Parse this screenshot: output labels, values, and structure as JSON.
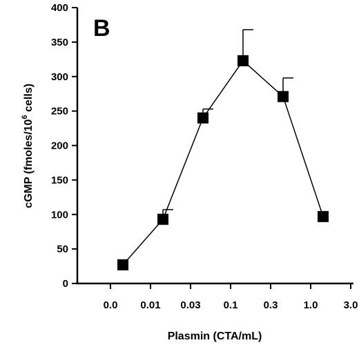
{
  "chart_data": {
    "type": "line",
    "panel_label": "B",
    "xlabel": "Plasmin (CTA/mL)",
    "ylabel_main": "cGMP (fmoles/10",
    "ylabel_sup": "6",
    "ylabel_tail": " cells)",
    "ylim": [
      0,
      400
    ],
    "yticks": [
      0,
      50,
      100,
      150,
      200,
      250,
      300,
      350,
      400
    ],
    "x_tick_labels": [
      "0.0",
      "0.01",
      "0.03",
      "0.1",
      "0.3",
      "1.0",
      "3.0"
    ],
    "grid": false,
    "points": [
      {
        "x": "0.0",
        "y": 27,
        "err": null
      },
      {
        "x": "0.01",
        "y": 93,
        "err": 107
      },
      {
        "x": "0.03",
        "y": 240,
        "err": 253
      },
      {
        "x": "0.1",
        "y": 323,
        "err": 368
      },
      {
        "x": "0.3",
        "y": 271,
        "err": 298
      },
      {
        "x": "1.0",
        "y": 97,
        "err": null
      }
    ]
  }
}
